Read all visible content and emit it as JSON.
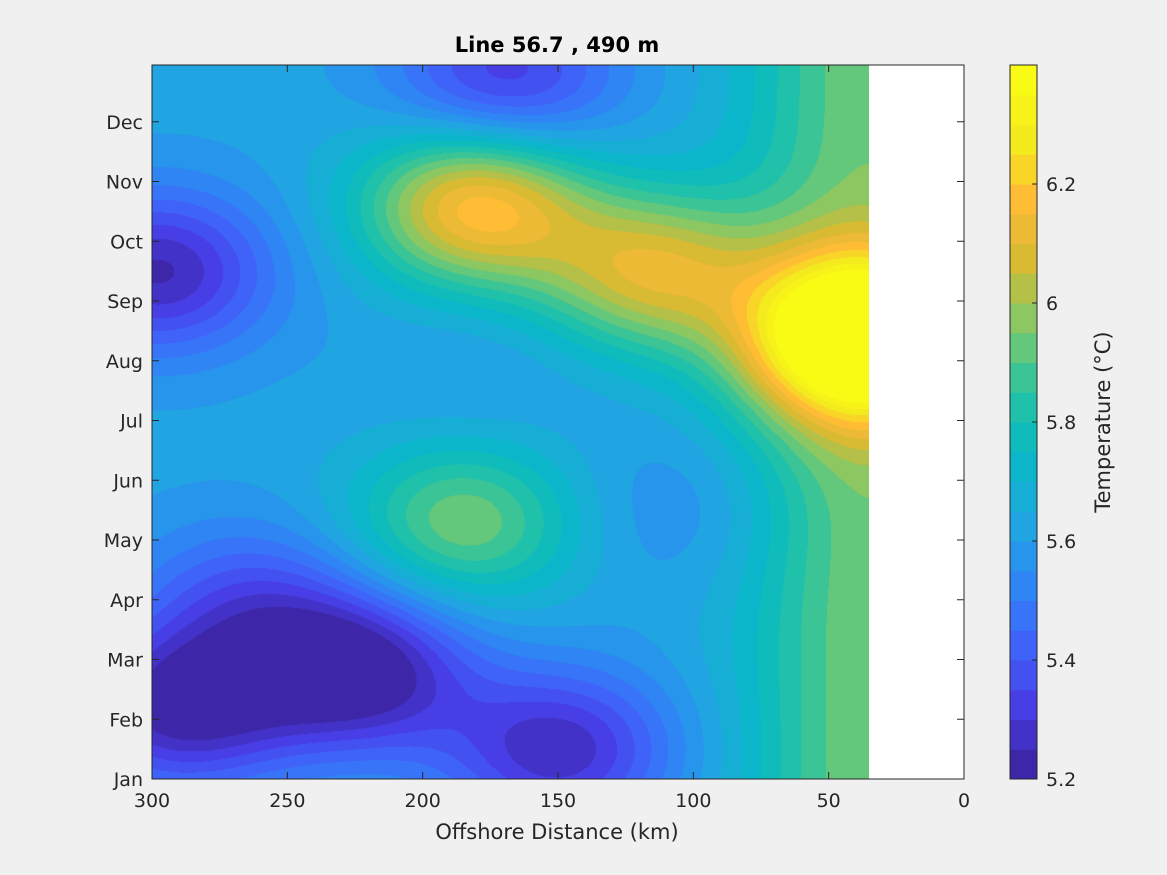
{
  "chart_data": {
    "type": "contour",
    "title": "Line 56.7 , 490 m",
    "xlabel": "Offshore Distance (km)",
    "ylabel": "",
    "xlim": [
      300,
      0
    ],
    "x_reversed": true,
    "xticks": [
      300,
      250,
      200,
      150,
      100,
      50,
      0
    ],
    "data_x_extent": [
      300,
      35
    ],
    "yticks": [
      "Jan",
      "Feb",
      "Mar",
      "Apr",
      "May",
      "Jun",
      "Jul",
      "Aug",
      "Sep",
      "Oct",
      "Nov",
      "Dec"
    ],
    "ylim_months": [
      0,
      11.95
    ],
    "colorbar": {
      "label": "Temperature (°C)",
      "range": [
        5.2,
        6.4
      ],
      "ticks": [
        "5.2",
        "5.4",
        "5.6",
        "5.8",
        "6",
        "6.2"
      ],
      "levels": 24,
      "colormap": [
        "#3e26a8",
        "#4740e8",
        "#3e66fa",
        "#2d8af3",
        "#1ea9de",
        "#07bac5",
        "#29c3a0",
        "#7dc96c",
        "#d2bb33",
        "#ffb936",
        "#f4ea1e",
        "#f9fb15"
      ]
    },
    "features": [
      {
        "kind": "warm",
        "x_km": 40,
        "month": 7.4,
        "value": 6.38,
        "note": "max near coast in Aug-Sep"
      },
      {
        "kind": "warm",
        "x_km": 180,
        "month": 9.6,
        "value": 6.15,
        "note": "Oct-Nov offshore"
      },
      {
        "kind": "warm",
        "x_km": 115,
        "month": 8.5,
        "value": 6.05,
        "note": "Sep-Oct"
      },
      {
        "kind": "warm",
        "x_km": 185,
        "month": 4.3,
        "value": 5.93,
        "note": "May-Jun"
      },
      {
        "kind": "cold",
        "x_km": 225,
        "month": 1.8,
        "value": 5.2,
        "note": "Feb-Mar minimum"
      },
      {
        "kind": "cold",
        "x_km": 290,
        "month": 1.2,
        "value": 5.24
      },
      {
        "kind": "cold",
        "x_km": 298,
        "month": 8.5,
        "value": 5.26
      },
      {
        "kind": "cold",
        "x_km": 150,
        "month": 0.5,
        "value": 5.28
      },
      {
        "kind": "cold",
        "x_km": 170,
        "month": 11.7,
        "value": 5.32,
        "note": "Dec"
      },
      {
        "kind": "cold",
        "x_km": 180,
        "month": 6.8,
        "value": 5.58,
        "note": "Jul-Aug"
      },
      {
        "kind": "cold",
        "x_km": 105,
        "month": 4.5,
        "value": 5.55,
        "note": "May-Jun"
      },
      {
        "kind": "cold",
        "x_km": 265,
        "month": 3.0,
        "value": 5.42,
        "note": "Apr"
      }
    ]
  }
}
